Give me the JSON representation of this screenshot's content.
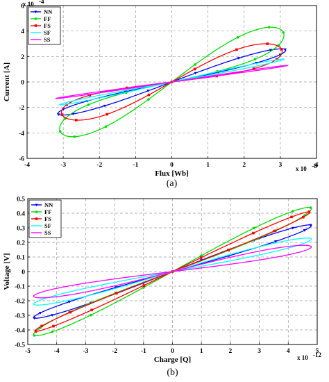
{
  "chart_data": [
    {
      "type": "line",
      "caption": "(a)",
      "xlabel": "Flux [Wb]",
      "ylabel": "Current [A]",
      "x_exponent": "x 10",
      "x_exponent_power": "-8",
      "y_exponent": "x 10",
      "y_exponent_power": "-4",
      "xlim": [
        -4,
        4
      ],
      "ylim": [
        -6,
        6
      ],
      "xticks": [
        -4,
        -3,
        -2,
        -1,
        0,
        1,
        2,
        3,
        4
      ],
      "yticks": [
        -6,
        -4,
        -2,
        0,
        2,
        4,
        6
      ],
      "grid": true,
      "legend_position": "top-left",
      "series": [
        {
          "name": "NN",
          "color": "#0000ff",
          "marker": "triangle-down",
          "amp_x": 3.15,
          "amp_y": 2.6,
          "phase": 0.3
        },
        {
          "name": "FF",
          "color": "#00dd00",
          "marker": "circle",
          "amp_x": 3.1,
          "amp_y": 4.3,
          "phase": 0.55
        },
        {
          "name": "FS",
          "color": "#ff0000",
          "marker": "square",
          "amp_x": 3.05,
          "amp_y": 3.0,
          "phase": 0.65
        },
        {
          "name": "SF",
          "color": "#00ffff",
          "marker": "none",
          "amp_x": 3.1,
          "amp_y": 1.8,
          "phase": 0.12
        },
        {
          "name": "SS",
          "color": "#ff00ff",
          "marker": "none",
          "amp_x": 3.2,
          "amp_y": 1.3,
          "phase": 0.08
        }
      ]
    },
    {
      "type": "line",
      "caption": "(b)",
      "xlabel": "Charge [Q]",
      "ylabel": "Voltage [V]",
      "x_exponent": "x 10",
      "x_exponent_power": "-12",
      "xlim": [
        -5,
        5
      ],
      "ylim": [
        -0.5,
        0.5
      ],
      "xticks": [
        -5,
        -4,
        -3,
        -2,
        -1,
        0,
        1,
        2,
        3,
        4,
        5
      ],
      "yticks": [
        -0.5,
        -0.4,
        -0.3,
        -0.2,
        -0.1,
        0,
        0.1,
        0.2,
        0.3,
        0.4,
        0.5
      ],
      "grid": true,
      "legend_position": "top-left",
      "series": [
        {
          "name": "NN",
          "color": "#0000ff",
          "marker": "triangle-down",
          "amp_x": 4.8,
          "amp_y": 0.32,
          "phase": 0.18
        },
        {
          "name": "FF",
          "color": "#00dd00",
          "marker": "circle",
          "amp_x": 4.8,
          "amp_y": 0.44,
          "phase": 0.2
        },
        {
          "name": "FS",
          "color": "#ff0000",
          "marker": "square",
          "amp_x": 4.75,
          "amp_y": 0.41,
          "phase": 0.12
        },
        {
          "name": "SF",
          "color": "#00ffff",
          "marker": "none",
          "amp_x": 4.8,
          "amp_y": 0.23,
          "phase": 0.25
        },
        {
          "name": "SS",
          "color": "#ff00ff",
          "marker": "none",
          "amp_x": 4.8,
          "amp_y": 0.18,
          "phase": 0.35
        }
      ]
    }
  ]
}
